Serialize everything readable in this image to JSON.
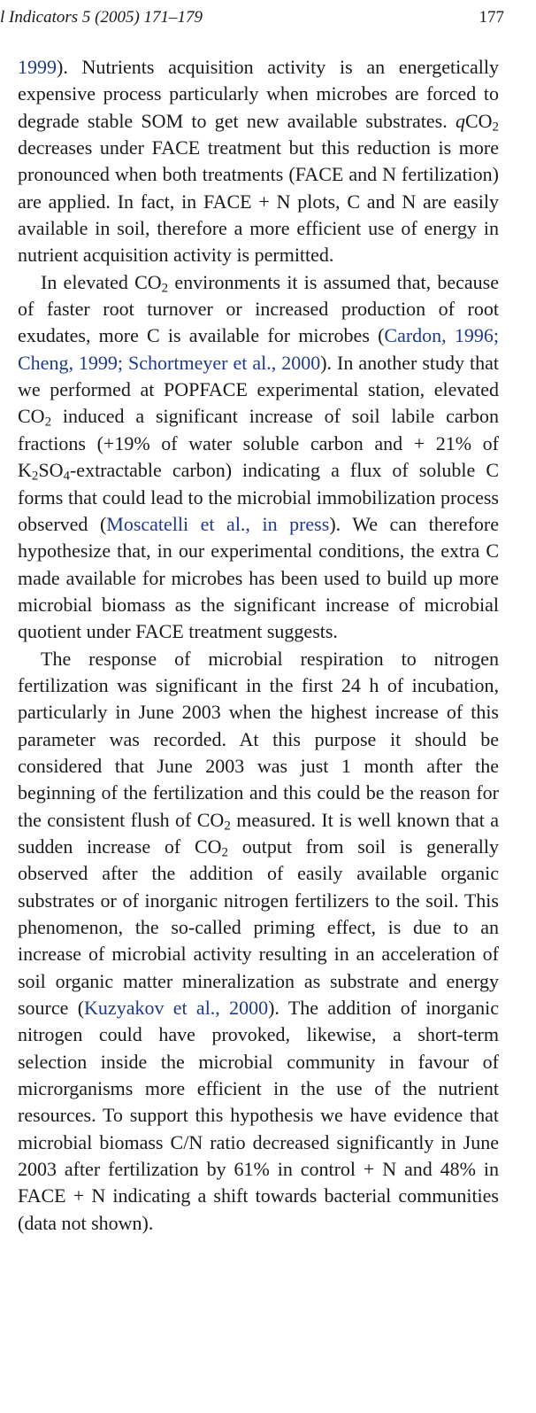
{
  "header": {
    "journal": "l Indicators 5 (2005) 171–179",
    "page_number": "177"
  },
  "paragraphs": [
    {
      "segments": [
        {
          "type": "cite",
          "text": "1999"
        },
        {
          "type": "text",
          "text": "). Nutrients acquisition activity is an energeti­cally expensive process particularly when microbes are forced to degrade stable SOM to get new available substrates. "
        },
        {
          "type": "q",
          "text": "q"
        },
        {
          "type": "text",
          "text": "CO"
        },
        {
          "type": "sub",
          "text": "2"
        },
        {
          "type": "text",
          "text": " decreases under FACE treatment but this reduction is more pronounced when both treatments (FACE and N fertilization) are applied. In fact, in FACE + N plots, C and N are easily available in soil, therefore a more efficient use of energy in nutrient acquisition activity is permitted."
        }
      ]
    },
    {
      "segments": [
        {
          "type": "text",
          "text": "In elevated CO"
        },
        {
          "type": "sub",
          "text": "2"
        },
        {
          "type": "text",
          "text": " environments it is assumed that, because of faster root turnover or increased production of root exudates, more C is available for microbes ("
        },
        {
          "type": "cite",
          "text": "Cardon, 1996; Cheng, 1999; Schortmeyer et al., 2000"
        },
        {
          "type": "text",
          "text": "). In another study that we performed at POPFACE experimental station, elevated CO"
        },
        {
          "type": "sub",
          "text": "2"
        },
        {
          "type": "text",
          "text": " induced a significant increase of soil labile carbon fractions (+19% of water soluble carbon and + 21% of K"
        },
        {
          "type": "sub",
          "text": "2"
        },
        {
          "type": "text",
          "text": "SO"
        },
        {
          "type": "sub",
          "text": "4"
        },
        {
          "type": "text",
          "text": "-extractable carbon) indicating a flux of soluble C forms that could lead to the microbial immobiliza­tion process observed ("
        },
        {
          "type": "cite",
          "text": "Moscatelli et al., in press"
        },
        {
          "type": "text",
          "text": "). We can therefore hypothesize that, in our experimental conditions, the extra C made available for microbes has been used to build up more microbial biomass as the significant increase of microbial quotient under FACE treatment suggests."
        }
      ]
    },
    {
      "segments": [
        {
          "type": "text",
          "text": "The response of microbial respiration to nitrogen fertilization was significant in the first 24 h of incubation, particularly in June 2003 when the highest increase of this parameter was recorded. At this purpose it should be considered that June 2003 was just 1 month after the beginning of the fertilization and this could be the reason for the consistent flush of CO"
        },
        {
          "type": "sub",
          "text": "2"
        },
        {
          "type": "text",
          "text": " measured. It is well known that a sudden increase of CO"
        },
        {
          "type": "sub",
          "text": "2"
        },
        {
          "type": "text",
          "text": " output from soil is generally observed after the addition of easily available organic substrates or of inorganic nitrogen fertilizers to the soil. This phenomenon, the so-called priming effect, is due to an increase of microbial activity resulting in an acceleration of soil organic matter mineralization as substrate and energy source ("
        },
        {
          "type": "cite",
          "text": "Kuzyakov et al., 2000"
        },
        {
          "type": "text",
          "text": "). The addition of inorganic nitrogen could have provoked, likewise, a short-term selection inside the microbial community in favour of microrganisms more efficient in the use of the nutrient resources. To support this hypothesis we have evidence that microbial biomass C/N ratio decreased signifi­cantly in June 2003 after fertilization by 61% in control + N and 48% in FACE + N indicating a shift towards bacterial communities (data not shown)."
        }
      ]
    }
  ]
}
